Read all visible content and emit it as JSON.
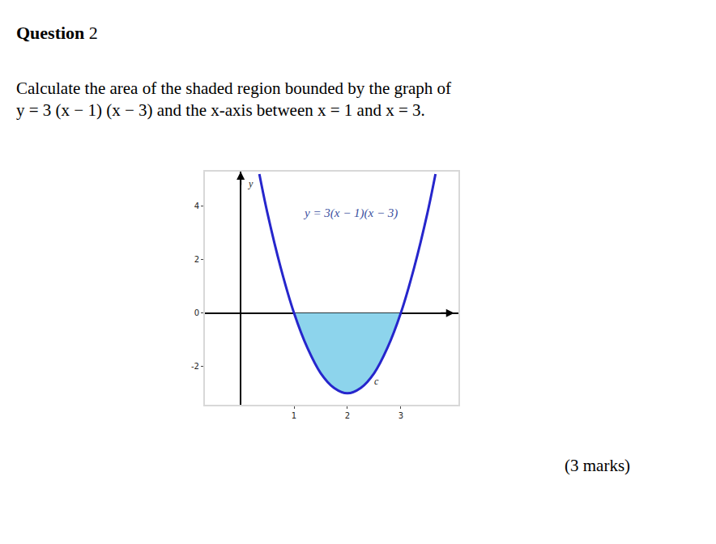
{
  "header": {
    "title": "Question",
    "number": "2"
  },
  "question": {
    "lines": [
      "Calculate the area of the shaded region bounded by the graph of",
      "y = 3 (x − 1) (x − 3) and the x-axis between x = 1 and x = 3."
    ]
  },
  "marks": "(3 marks)",
  "chart_data": {
    "type": "line",
    "x": [
      0.35,
      0.5,
      0.75,
      1,
      1.25,
      1.5,
      1.75,
      2,
      2.25,
      2.5,
      2.75,
      3,
      3.25,
      3.5,
      3.65
    ],
    "values": [
      5.2,
      3.75,
      1.7,
      0,
      -1.3,
      -2.25,
      -2.8,
      -3,
      -2.8,
      -2.25,
      -1.3,
      0,
      1.7,
      3.75,
      5.2
    ],
    "color": "#2626cc",
    "xlim": [
      -0.67,
      4.08
    ],
    "ylim": [
      -3.43,
      5.29
    ],
    "xticks": [
      1,
      2,
      3
    ],
    "yticks": [
      -2,
      0,
      2,
      4
    ],
    "grid": false,
    "shaded": {
      "from": 1,
      "to": 3,
      "color": "#8dd4ec"
    },
    "annotations": [
      {
        "text": "y = 3(x − 1)(x − 3)",
        "x": 2.06,
        "y": 3.73
      },
      {
        "text": "y",
        "x": 0.1,
        "y": 4.85
      },
      {
        "text": "c",
        "x": 2.55,
        "y": -2.55
      }
    ]
  }
}
